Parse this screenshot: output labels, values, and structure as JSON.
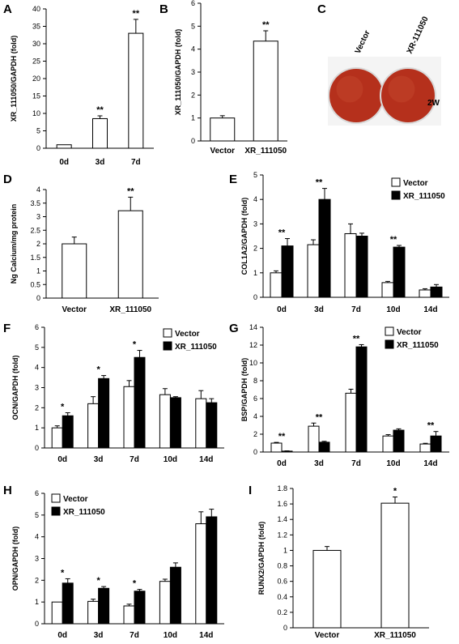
{
  "chart_data": [
    {
      "id": "A",
      "type": "bar",
      "ylabel": "XR_111050/GAPDH (fold)",
      "ylim": [
        0,
        40
      ],
      "yticks": [
        0,
        5,
        10,
        15,
        20,
        25,
        30,
        35,
        40
      ],
      "categories": [
        "0d",
        "3d",
        "7d"
      ],
      "series": [
        {
          "values": [
            1,
            8.5,
            33
          ],
          "errors": [
            0,
            0.8,
            4
          ],
          "color": "#ffffff"
        }
      ],
      "annotations": [
        [
          null,
          "**",
          "**"
        ]
      ]
    },
    {
      "id": "B",
      "type": "bar",
      "ylabel": "XR_111050/GAPDH  (fold)",
      "ylim": [
        0,
        6
      ],
      "yticks": [
        0,
        1,
        2,
        3,
        4,
        5,
        6
      ],
      "categories": [
        "Vector",
        "XR_111050"
      ],
      "series": [
        {
          "values": [
            1,
            4.35
          ],
          "errors": [
            0.1,
            0.45
          ],
          "color": "#ffffff"
        }
      ],
      "annotations": [
        [
          null,
          "**"
        ]
      ]
    },
    {
      "id": "C",
      "type": "image",
      "labels": [
        "Vector",
        "XR-111050"
      ],
      "side_label": "2W"
    },
    {
      "id": "D",
      "type": "bar",
      "ylabel": "Ng Calcium/mg protein",
      "ylim": [
        0,
        4
      ],
      "yticks": [
        0,
        0.5,
        1,
        1.5,
        2,
        2.5,
        3,
        3.5,
        4
      ],
      "categories": [
        "Vector",
        "XR_111050"
      ],
      "series": [
        {
          "values": [
            2,
            3.22
          ],
          "errors": [
            0.25,
            0.5
          ],
          "color": "#ffffff"
        }
      ],
      "annotations": [
        [
          null,
          "**"
        ]
      ]
    },
    {
      "id": "E",
      "type": "bar",
      "ylabel": "COL1A2/GAPDH (fold)",
      "ylim": [
        0,
        5
      ],
      "yticks": [
        0,
        1,
        2,
        3,
        4,
        5
      ],
      "categories": [
        "0d",
        "3d",
        "7d",
        "10d",
        "14d"
      ],
      "series": [
        {
          "name": "Vector",
          "values": [
            1,
            2.15,
            2.6,
            0.6,
            0.3
          ],
          "errors": [
            0.08,
            0.2,
            0.4,
            0.05,
            0.05
          ],
          "color": "#ffffff"
        },
        {
          "name": "XR_111050",
          "values": [
            2.1,
            4.0,
            2.5,
            2.05,
            0.42
          ],
          "errors": [
            0.3,
            0.45,
            0.12,
            0.07,
            0.1
          ],
          "color": "#000000"
        }
      ],
      "annotations": [
        [
          "**",
          "**",
          null,
          "**",
          null
        ]
      ],
      "legend": "top-right"
    },
    {
      "id": "F",
      "type": "bar",
      "ylabel": "OCN/GAPDH (fold)",
      "ylim": [
        0,
        6
      ],
      "yticks": [
        0,
        1,
        2,
        3,
        4,
        5,
        6
      ],
      "categories": [
        "0d",
        "3d",
        "7d",
        "10d",
        "14d"
      ],
      "series": [
        {
          "name": "Vector",
          "values": [
            1,
            2.2,
            3.05,
            2.65,
            2.45
          ],
          "errors": [
            0.1,
            0.35,
            0.3,
            0.3,
            0.4
          ],
          "color": "#ffffff"
        },
        {
          "name": "XR_111050",
          "values": [
            1.6,
            3.45,
            4.5,
            2.5,
            2.25
          ],
          "errors": [
            0.15,
            0.15,
            0.35,
            0.05,
            0.2
          ],
          "color": "#000000"
        }
      ],
      "annotations": [
        [
          "*",
          "*",
          "*",
          null,
          null
        ]
      ],
      "legend": "top-right"
    },
    {
      "id": "G",
      "type": "bar",
      "ylabel": "BSP/GAPDH (fold)",
      "ylim": [
        0,
        14
      ],
      "yticks": [
        0,
        2,
        4,
        6,
        8,
        10,
        12,
        14
      ],
      "categories": [
        "0d",
        "3d",
        "7d",
        "10d",
        "14d"
      ],
      "series": [
        {
          "name": "Vector",
          "values": [
            1,
            2.9,
            6.6,
            1.8,
            0.9
          ],
          "errors": [
            0.08,
            0.35,
            0.45,
            0.15,
            0.08
          ],
          "color": "#ffffff"
        },
        {
          "name": "XR_111050",
          "values": [
            0.1,
            1.1,
            11.8,
            2.45,
            1.8
          ],
          "errors": [
            0.03,
            0.1,
            0.25,
            0.15,
            0.5
          ],
          "color": "#000000"
        }
      ],
      "annotations": [
        [
          "**",
          "**",
          "**",
          null,
          "**"
        ]
      ],
      "legend": "top-right"
    },
    {
      "id": "H",
      "type": "bar",
      "ylabel": "OPN/GAPDH (fold)",
      "ylim": [
        0,
        6
      ],
      "yticks": [
        0,
        1,
        2,
        3,
        4,
        5,
        6
      ],
      "categories": [
        "0d",
        "3d",
        "7d",
        "10d",
        "14d"
      ],
      "series": [
        {
          "name": "Vector",
          "values": [
            1,
            1.03,
            0.82,
            1.95,
            4.6
          ],
          "errors": [
            0,
            0.1,
            0.08,
            0.1,
            0.55
          ],
          "color": "#ffffff"
        },
        {
          "name": "XR_111050",
          "values": [
            1.87,
            1.63,
            1.5,
            2.6,
            4.92
          ],
          "errors": [
            0.2,
            0.08,
            0.08,
            0.2,
            0.35
          ],
          "color": "#000000"
        }
      ],
      "annotations": [
        [
          "*",
          "*",
          "*",
          null,
          null
        ]
      ],
      "legend": "top-left"
    },
    {
      "id": "I",
      "type": "bar",
      "ylabel": "RUNX2/GAPDH  (fold)",
      "ylim": [
        0,
        1.8
      ],
      "yticks": [
        0,
        0.2,
        0.4,
        0.6,
        0.8,
        1,
        1.2,
        1.4,
        1.6,
        1.8
      ],
      "categories": [
        "Vector",
        "XR_111050"
      ],
      "series": [
        {
          "values": [
            1,
            1.61
          ],
          "errors": [
            0.05,
            0.08
          ],
          "color": "#ffffff"
        }
      ],
      "annotations": [
        [
          null,
          "*"
        ]
      ]
    }
  ]
}
